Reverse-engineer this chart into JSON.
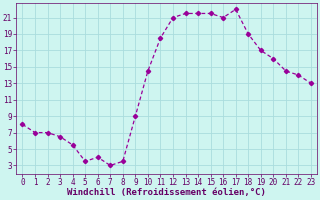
{
  "x": [
    0,
    1,
    2,
    3,
    4,
    5,
    6,
    7,
    8,
    9,
    10,
    11,
    12,
    13,
    14,
    15,
    16,
    17,
    18,
    19,
    20,
    21,
    22,
    23
  ],
  "y": [
    8,
    7,
    7,
    6.5,
    5.5,
    3.5,
    4,
    3,
    3.5,
    9,
    14.5,
    18.5,
    21,
    21.5,
    21.5,
    21.5,
    21,
    22,
    19,
    17,
    16,
    14.5,
    14,
    13
  ],
  "line_color": "#990099",
  "marker": "D",
  "markersize": 2.2,
  "linewidth": 0.9,
  "background_color": "#cef5f0",
  "grid_color": "#aadddd",
  "xlabel": "Windchill (Refroidissement éolien,°C)",
  "xlabel_fontsize": 6.5,
  "xlabel_color": "#660066",
  "tick_color": "#660066",
  "tick_fontsize": 5.5,
  "yticks": [
    3,
    5,
    7,
    9,
    11,
    13,
    15,
    17,
    19,
    21
  ],
  "xticks": [
    0,
    1,
    2,
    3,
    4,
    5,
    6,
    7,
    8,
    9,
    10,
    11,
    12,
    13,
    14,
    15,
    16,
    17,
    18,
    19,
    20,
    21,
    22,
    23
  ],
  "xlim": [
    -0.5,
    23.5
  ],
  "ylim": [
    2,
    22.8
  ]
}
